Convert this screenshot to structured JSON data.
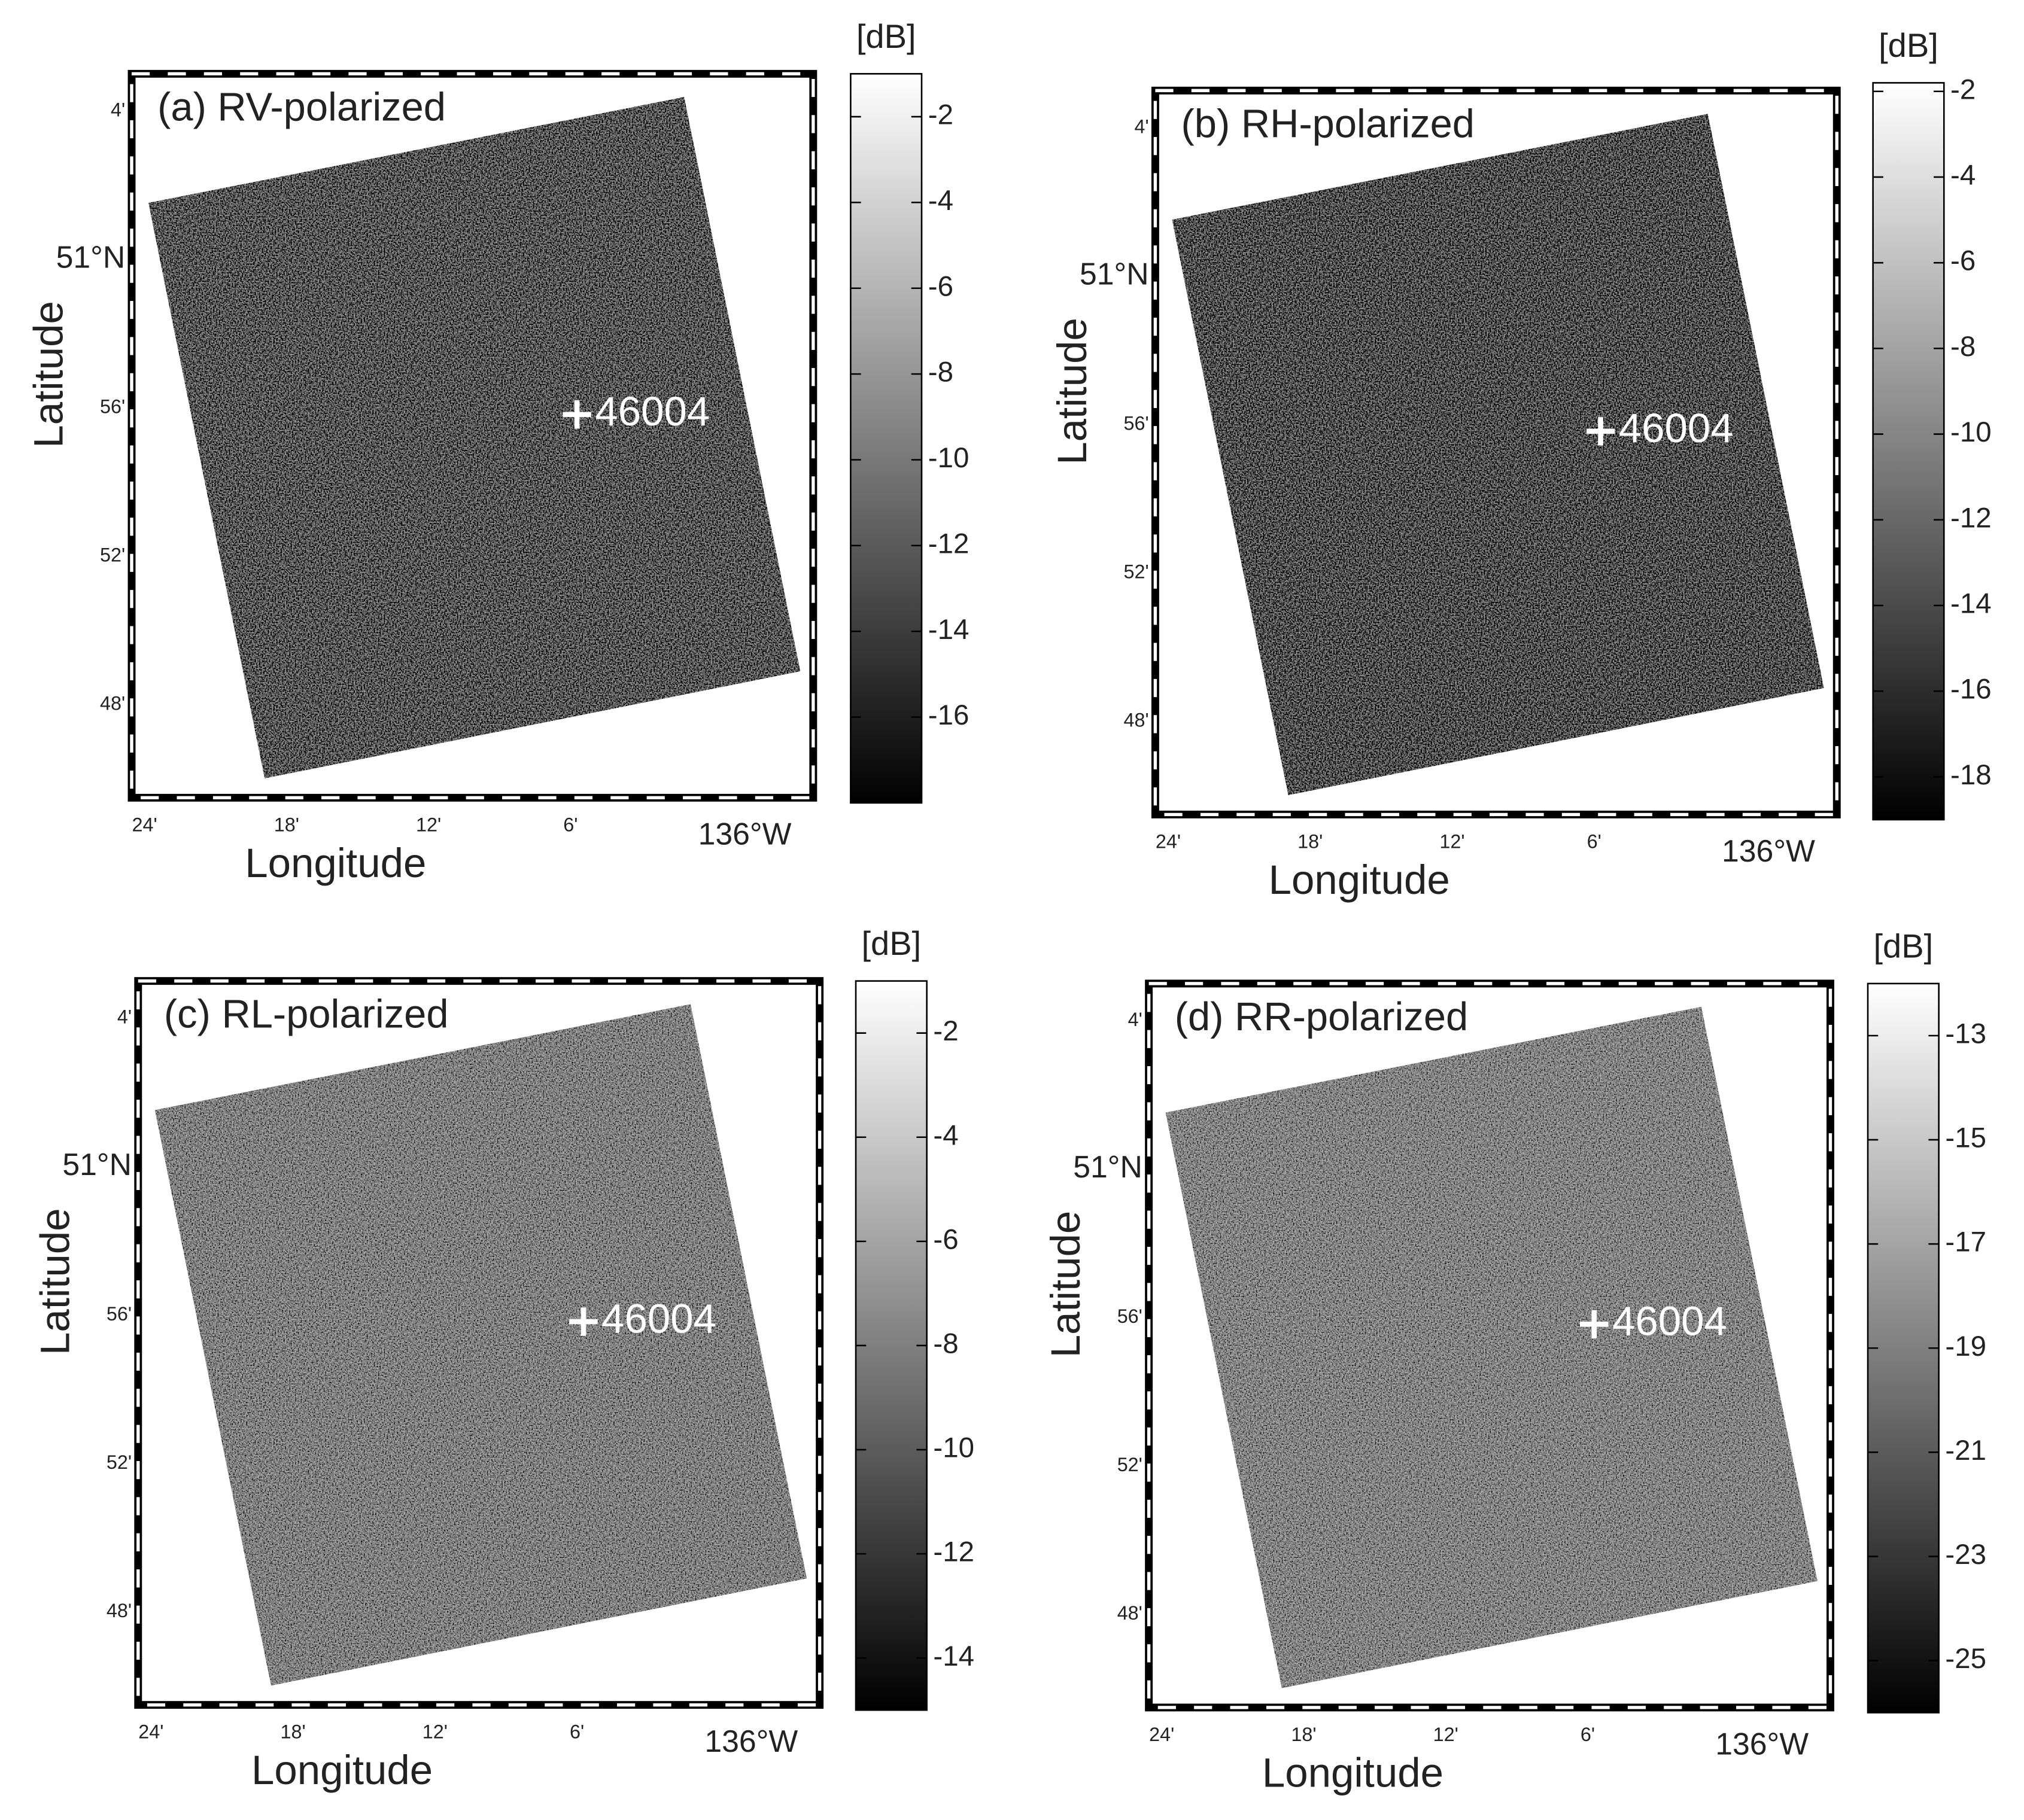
{
  "panels": [
    {
      "title": "(a) RV-polarized",
      "buoy": "46004",
      "ylabel": "Latitude",
      "xlabel": "Longitude",
      "lat_labels": [
        "4'",
        "51°N",
        "56'",
        "52'",
        "48'"
      ],
      "lon_labels": [
        "24'",
        "18'",
        "12'",
        "6'",
        "136°W"
      ],
      "colorbar": {
        "label": "[dB]",
        "clim": [
          -18,
          -1
        ],
        "ticks": [
          -2,
          -4,
          -6,
          -8,
          -10,
          -12,
          -14,
          -16
        ]
      }
    },
    {
      "title": "(b) RH-polarized",
      "buoy": "46004",
      "ylabel": "Latitude",
      "xlabel": "Longitude",
      "lat_labels": [
        "4'",
        "51°N",
        "56'",
        "52'",
        "48'"
      ],
      "lon_labels": [
        "24'",
        "18'",
        "12'",
        "6'",
        "136°W"
      ],
      "colorbar": {
        "label": "[dB]",
        "clim": [
          -19,
          -1.8
        ],
        "ticks": [
          -2,
          -4,
          -6,
          -8,
          -10,
          -12,
          -14,
          -16,
          -18
        ]
      }
    },
    {
      "title": "(c) RL-polarized",
      "buoy": "46004",
      "ylabel": "Latitude",
      "xlabel": "Longitude",
      "lat_labels": [
        "4'",
        "51°N",
        "56'",
        "52'",
        "48'"
      ],
      "lon_labels": [
        "24'",
        "18'",
        "12'",
        "6'",
        "136°W"
      ],
      "colorbar": {
        "label": "[dB]",
        "clim": [
          -15,
          -1
        ],
        "ticks": [
          -2,
          -4,
          -6,
          -8,
          -10,
          -12,
          -14
        ]
      }
    },
    {
      "title": "(d) RR-polarized",
      "buoy": "46004",
      "ylabel": "Latitude",
      "xlabel": "Longitude",
      "lat_labels": [
        "4'",
        "51°N",
        "56'",
        "52'",
        "48'"
      ],
      "lon_labels": [
        "24'",
        "18'",
        "12'",
        "6'",
        "136°W"
      ],
      "colorbar": {
        "label": "[dB]",
        "clim": [
          -26,
          -12
        ],
        "ticks": [
          -13,
          -15,
          -17,
          -19,
          -21,
          -23,
          -25
        ]
      }
    }
  ]
}
